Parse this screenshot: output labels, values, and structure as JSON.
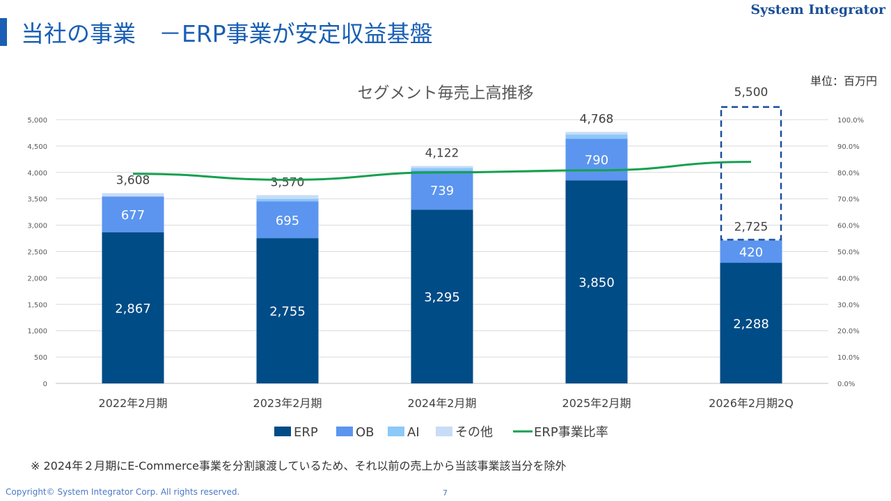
{
  "header": {
    "title": "当社の事業　－ERP事業が安定収益基盤",
    "brand": "System Integrator"
  },
  "unit_label": "単位：百万円",
  "footnote": "※ 2024年２月期にE-Commerce事業を分割譲渡しているため、それ以前の売上から当該事業該当分を除外",
  "footer": {
    "copyright": "Copyright© System Integrator Corp. All rights reserved.",
    "page": "7"
  },
  "colors": {
    "ERP": "#004c86",
    "OB": "#5b95ef",
    "AI": "#8cc8f8",
    "その他": "#c8dcf8",
    "ratio_line": "#15a050",
    "forecast_box": "#1a4f9c"
  },
  "chart_data": {
    "type": "bar",
    "stacked": true,
    "title": "セグメント毎売上高推移",
    "categories": [
      "2022年2月期",
      "2023年2月期",
      "2024年2月期",
      "2025年2月期",
      "2026年2月期2Q"
    ],
    "series": [
      {
        "name": "ERP",
        "values": [
          2867,
          2755,
          3295,
          3850,
          2288
        ]
      },
      {
        "name": "OB",
        "values": [
          677,
          695,
          739,
          790,
          420
        ]
      },
      {
        "name": "AI",
        "values": [
          0,
          50,
          50,
          80,
          0
        ]
      },
      {
        "name": "その他",
        "values": [
          64,
          70,
          38,
          48,
          17
        ]
      }
    ],
    "segment_labels": {
      "ERP": [
        "2,867",
        "2,755",
        "3,295",
        "3,850",
        "2,288"
      ],
      "OB": [
        "677",
        "695",
        "739",
        "790",
        "420"
      ]
    },
    "totals": [
      3608,
      3570,
      4122,
      4768,
      2725
    ],
    "total_labels": [
      "3,608",
      "3,570",
      "4,122",
      "4,768",
      "2,725"
    ],
    "forecast": {
      "category": "2026年2月期2Q",
      "value": 5500,
      "label": "5,500"
    },
    "line_series": {
      "name": "ERP事業比率",
      "values": [
        79.5,
        77.2,
        80.0,
        80.8,
        84.0
      ],
      "axis": "right"
    },
    "ylim": [
      0,
      5000
    ],
    "yticks": [
      "0",
      "500",
      "1,000",
      "1,500",
      "2,000",
      "2,500",
      "3,000",
      "3,500",
      "4,000",
      "4,500",
      "5,000"
    ],
    "y2lim": [
      0,
      100
    ],
    "y2ticks": [
      "0.0%",
      "10.0%",
      "20.0%",
      "30.0%",
      "40.0%",
      "50.0%",
      "60.0%",
      "70.0%",
      "80.0%",
      "90.0%",
      "100.0%"
    ],
    "legend": [
      "ERP",
      "OB",
      "AI",
      "その他",
      "ERP事業比率"
    ],
    "legend_position": "bottom",
    "grid": true
  }
}
